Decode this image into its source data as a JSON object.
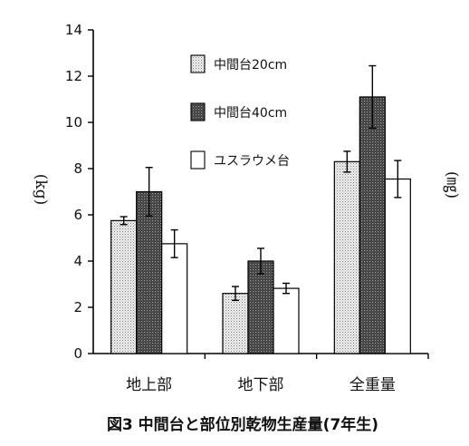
{
  "chart_data": {
    "type": "bar",
    "caption": "図3 中間台と部位別乾物生産量(7年生)",
    "ylabel_left": "(kg)",
    "ylabel_right": "(㎎)",
    "ylim": [
      0,
      14
    ],
    "yticks": [
      0,
      2,
      4,
      6,
      8,
      10,
      12,
      14
    ],
    "categories": [
      "地上部",
      "地下部",
      "全重量"
    ],
    "series": [
      {
        "name": "中間台20cm",
        "values": [
          5.75,
          2.6,
          8.3
        ],
        "errors": [
          0.17,
          0.3,
          0.45
        ],
        "pattern": "light-dots"
      },
      {
        "name": "中間台40cm",
        "values": [
          7.0,
          4.0,
          11.1
        ],
        "errors": [
          1.05,
          0.55,
          1.35
        ],
        "pattern": "dark-dots"
      },
      {
        "name": "ユスラウメ台",
        "values": [
          4.75,
          2.82,
          7.55
        ],
        "errors": [
          0.6,
          0.22,
          0.8
        ],
        "pattern": "white"
      }
    ],
    "grid": false,
    "legend_position": "top-center"
  }
}
